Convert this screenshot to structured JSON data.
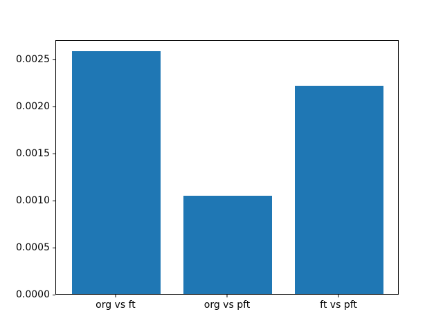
{
  "figure": {
    "background": "#ffffff",
    "spine_color": "#000000",
    "text_color": "#000000"
  },
  "chart_data": {
    "type": "bar",
    "title": "",
    "xlabel": "",
    "ylabel": "",
    "categories": [
      "org vs ft",
      "org vs pft",
      "ft vs pft"
    ],
    "values": [
      0.00258,
      0.00104,
      0.00221
    ],
    "bar_color": "#1f77b4",
    "bar_width": 0.8,
    "xlim": [
      -0.54,
      2.54
    ],
    "ylim": [
      0,
      0.002707
    ],
    "yticks": [
      0.0,
      0.0005,
      0.001,
      0.0015,
      0.002,
      0.0025
    ],
    "ytick_labels": [
      "0.0000",
      "0.0005",
      "0.0010",
      "0.0015",
      "0.0020",
      "0.0025"
    ],
    "grid": false,
    "legend": "none"
  }
}
